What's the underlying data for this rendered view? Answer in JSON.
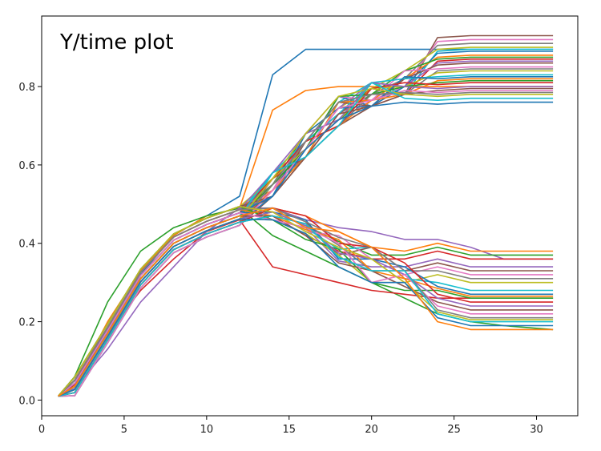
{
  "chart_data": {
    "type": "line",
    "title": "Y/time plot",
    "xlabel": "",
    "ylabel": "",
    "xlim": [
      0,
      32.5
    ],
    "ylim": [
      -0.04,
      0.98
    ],
    "xticks": [
      0,
      5,
      10,
      15,
      20,
      25,
      30
    ],
    "yticks": [
      0.0,
      0.2,
      0.4,
      0.6,
      0.8
    ],
    "ytick_labels": [
      "0.0",
      "0.2",
      "0.4",
      "0.6",
      "0.8"
    ],
    "grid": false,
    "legend": "none",
    "x": [
      1,
      2,
      4,
      6,
      8,
      10,
      12,
      14,
      16,
      18,
      20,
      22,
      24,
      26,
      28,
      31
    ],
    "colors": [
      "#1f77b4",
      "#ff7f0e",
      "#2ca02c",
      "#d62728",
      "#9467bd",
      "#8c564b",
      "#e377c2",
      "#7f7f7f",
      "#bcbd22",
      "#17becf"
    ],
    "upper_finals": [
      0.93,
      0.92,
      0.91,
      0.9,
      0.895,
      0.89,
      0.88,
      0.875,
      0.87,
      0.865,
      0.86,
      0.85,
      0.845,
      0.84,
      0.83,
      0.825,
      0.82,
      0.815,
      0.81,
      0.8,
      0.795,
      0.79,
      0.785,
      0.78,
      0.77,
      0.76
    ],
    "lower_finals": [
      0.38,
      0.37,
      0.36,
      0.34,
      0.33,
      0.32,
      0.31,
      0.3,
      0.28,
      0.27,
      0.265,
      0.26,
      0.25,
      0.24,
      0.23,
      0.22,
      0.21,
      0.205,
      0.2,
      0.19,
      0.18
    ],
    "series": [
      {
        "y": [
          0.01,
          0.05,
          0.18,
          0.32,
          0.42,
          0.47,
          0.52,
          0.83,
          0.895,
          0.895,
          0.895,
          0.895,
          0.895,
          0.895,
          0.895,
          0.895
        ]
      },
      {
        "y": [
          0.01,
          0.04,
          0.2,
          0.33,
          0.42,
          0.47,
          0.49,
          0.74,
          0.79,
          0.8,
          0.8,
          0.8,
          0.8,
          0.8,
          0.8,
          0.8
        ]
      },
      {
        "y": [
          0.01,
          0.06,
          0.25,
          0.38,
          0.44,
          0.47,
          0.49,
          0.42,
          0.38,
          0.34,
          0.3,
          0.26,
          0.22,
          0.2,
          0.19,
          0.18
        ]
      },
      {
        "y": [
          0.01,
          0.04,
          0.17,
          0.28,
          0.36,
          0.43,
          0.46,
          0.34,
          0.32,
          0.3,
          0.28,
          0.27,
          0.26,
          0.26,
          0.26,
          0.26
        ]
      },
      {
        "y": [
          0.01,
          0.03,
          0.13,
          0.25,
          0.34,
          0.43,
          0.49,
          0.49,
          0.46,
          0.44,
          0.43,
          0.41,
          0.41,
          0.39,
          0.36,
          0.36
        ]
      }
    ]
  }
}
